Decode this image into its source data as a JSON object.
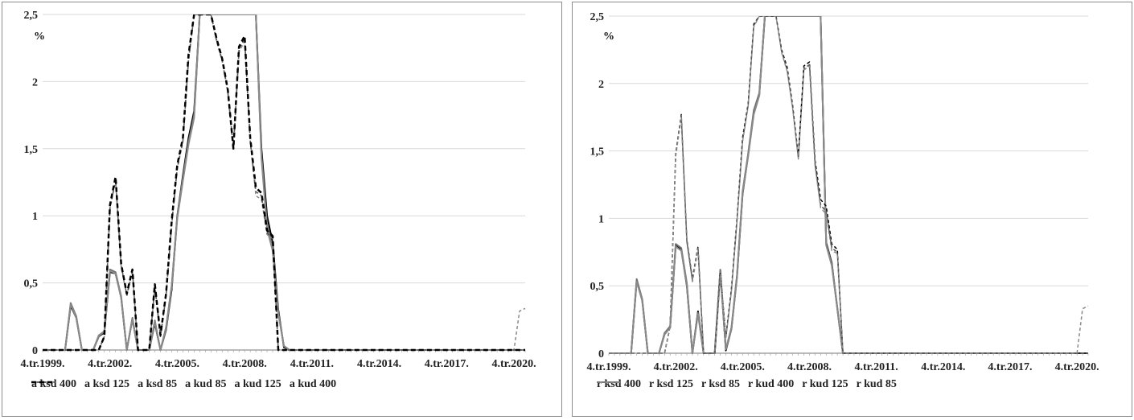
{
  "chart_data": [
    {
      "type": "line",
      "title": "",
      "xlabel": "",
      "ylabel": "%",
      "ylim": [
        0,
        2.5
      ],
      "y_ticks": [
        "0",
        "0,5",
        "1",
        "1,5",
        "2",
        "2,5"
      ],
      "x_tick_labels": [
        "4.tr.1999.",
        "4.tr.2002.",
        "4.tr.2005.",
        "4.tr.2008.",
        "4.tr.2011.",
        "4.tr.2014.",
        "4.tr.2017.",
        "4.tr.2020."
      ],
      "grid": true,
      "legend_position": "bottom",
      "x_start": "4.tr.1999.",
      "x_step": "quarter",
      "series": [
        {
          "name": "a ksd 400",
          "color": "#000000",
          "dash": "solid",
          "width": 2,
          "values": [
            0,
            0,
            0,
            0,
            0,
            0.33,
            0.24,
            0,
            0,
            0,
            0.1,
            0.13,
            0.58,
            0.57,
            0.39,
            0,
            0.23,
            0,
            0,
            0,
            0.2,
            0,
            0.15,
            0.45,
            1,
            1.3,
            1.58,
            1.78,
            2.5,
            2.5,
            2.5,
            2.5,
            2.5,
            2.5,
            2.5,
            2.5,
            2.5,
            2.5,
            2.5,
            1.5,
            1,
            0.8,
            0.3,
            0.02,
            0,
            0,
            0,
            0,
            0,
            0,
            0,
            0,
            0,
            0,
            0,
            0,
            0,
            0,
            0,
            0,
            0,
            0,
            0,
            0,
            0,
            0,
            0,
            0,
            0,
            0,
            0,
            0,
            0,
            0,
            0,
            0,
            0,
            0,
            0,
            0,
            0,
            0,
            0,
            0,
            0,
            0,
            0
          ]
        },
        {
          "name": "a ksd 125",
          "color": "#6e6e6e",
          "dash": "solid",
          "width": 2,
          "values": [
            0,
            0,
            0,
            0,
            0,
            0.35,
            0.25,
            0,
            0,
            0,
            0.1,
            0.14,
            0.6,
            0.58,
            0.4,
            0,
            0.24,
            0,
            0,
            0,
            0.22,
            0,
            0.17,
            0.48,
            1,
            1.28,
            1.55,
            1.75,
            2.5,
            2.5,
            2.5,
            2.5,
            2.5,
            2.5,
            2.5,
            2.5,
            2.5,
            2.5,
            2.5,
            1.45,
            0.93,
            0.76,
            0.28,
            0.03,
            0,
            0,
            0,
            0,
            0,
            0,
            0,
            0,
            0,
            0,
            0,
            0,
            0,
            0,
            0,
            0,
            0,
            0,
            0,
            0,
            0,
            0,
            0,
            0,
            0,
            0,
            0,
            0,
            0,
            0,
            0,
            0,
            0,
            0,
            0,
            0,
            0,
            0,
            0,
            0,
            0,
            0,
            0
          ]
        },
        {
          "name": "a ksd 85",
          "color": "#8a8a8a",
          "dash": "solid",
          "width": 2,
          "values": [
            0,
            0,
            0,
            0,
            0,
            0.34,
            0.24,
            0,
            0,
            0,
            0.11,
            0.14,
            0.59,
            0.57,
            0.39,
            0,
            0.23,
            0,
            0,
            0,
            0.21,
            0,
            0.16,
            0.47,
            0.98,
            1.26,
            1.53,
            1.73,
            2.5,
            2.5,
            2.5,
            2.5,
            2.5,
            2.5,
            2.5,
            2.5,
            2.5,
            2.5,
            2.5,
            1.43,
            0.9,
            0.74,
            0.27,
            0.03,
            0,
            0,
            0,
            0,
            0,
            0,
            0,
            0,
            0,
            0,
            0,
            0,
            0,
            0,
            0,
            0,
            0,
            0,
            0,
            0,
            0,
            0,
            0,
            0,
            0,
            0,
            0,
            0,
            0,
            0,
            0,
            0,
            0,
            0,
            0,
            0,
            0,
            0,
            0,
            0,
            0,
            0,
            0
          ]
        },
        {
          "name": "a kud 85",
          "color": "#8a8a8a",
          "dash": "4,3",
          "width": 1.5,
          "values": [
            0,
            0,
            0,
            0,
            0,
            0,
            0,
            0,
            0,
            0,
            0,
            0.1,
            1.05,
            1.26,
            0.62,
            0.4,
            0.58,
            0,
            0,
            0,
            0.47,
            0.1,
            0.4,
            0.93,
            1.35,
            1.55,
            2.15,
            2.5,
            2.5,
            2.5,
            2.5,
            2.3,
            2.15,
            1.92,
            1.5,
            2.22,
            2.3,
            1.55,
            1.15,
            1.12,
            0.86,
            0.83,
            0,
            0,
            0,
            0,
            0,
            0,
            0,
            0,
            0,
            0,
            0,
            0,
            0,
            0,
            0,
            0,
            0,
            0,
            0,
            0,
            0,
            0,
            0,
            0,
            0,
            0,
            0,
            0,
            0,
            0,
            0,
            0,
            0,
            0,
            0,
            0,
            0,
            0,
            0,
            0,
            0,
            0,
            0,
            0.29,
            0.31
          ]
        },
        {
          "name": "a kud 125",
          "color": "#555555",
          "dash": "4,3",
          "width": 1.5,
          "values": [
            0,
            0,
            0,
            0,
            0,
            0,
            0,
            0,
            0,
            0,
            0,
            0.1,
            1.06,
            1.27,
            0.63,
            0.41,
            0.59,
            0,
            0,
            0,
            0.48,
            0.1,
            0.41,
            0.94,
            1.36,
            1.56,
            2.17,
            2.5,
            2.5,
            2.5,
            2.5,
            2.31,
            2.16,
            1.93,
            1.5,
            2.24,
            2.32,
            1.56,
            1.18,
            1.15,
            0.87,
            0.84,
            0,
            0,
            0,
            0,
            0,
            0,
            0,
            0,
            0,
            0,
            0,
            0,
            0,
            0,
            0,
            0,
            0,
            0,
            0,
            0,
            0,
            0,
            0,
            0,
            0,
            0,
            0,
            0,
            0,
            0,
            0,
            0,
            0,
            0,
            0,
            0,
            0,
            0,
            0,
            0,
            0,
            0,
            0,
            0,
            0
          ]
        },
        {
          "name": "a kud 400",
          "color": "#000000",
          "dash": "6,4",
          "width": 2.5,
          "values": [
            0,
            0,
            0,
            0,
            0,
            0,
            0,
            0,
            0,
            0,
            0,
            0.1,
            1.08,
            1.29,
            0.64,
            0.42,
            0.6,
            0,
            0,
            0,
            0.49,
            0.11,
            0.42,
            0.96,
            1.38,
            1.58,
            2.2,
            2.5,
            2.5,
            2.5,
            2.5,
            2.32,
            2.17,
            1.94,
            1.5,
            2.26,
            2.34,
            1.58,
            1.21,
            1.17,
            0.89,
            0.85,
            0,
            0,
            0,
            0,
            0,
            0,
            0,
            0,
            0,
            0,
            0,
            0,
            0,
            0,
            0,
            0,
            0,
            0,
            0,
            0,
            0,
            0,
            0,
            0,
            0,
            0,
            0,
            0,
            0,
            0,
            0,
            0,
            0,
            0,
            0,
            0,
            0,
            0,
            0,
            0,
            0,
            0,
            0,
            0,
            0
          ]
        }
      ]
    },
    {
      "type": "line",
      "title": "",
      "xlabel": "",
      "ylabel": "%",
      "ylim": [
        0,
        2.5
      ],
      "y_ticks": [
        "0",
        "0,5",
        "1",
        "1,5",
        "2",
        "2,5"
      ],
      "x_tick_labels": [
        "4.tr.1999.",
        "4.tr.2002.",
        "4.tr.2005.",
        "4.tr.2008.",
        "4.tr.2011.",
        "4.tr.2014.",
        "4.tr.2017.",
        "4.tr.2020."
      ],
      "grid": true,
      "legend_position": "bottom",
      "x_start": "4.tr.1999.",
      "x_step": "quarter",
      "series": [
        {
          "name": "r ksd 400",
          "color": "#000000",
          "dash": "solid",
          "width": 2,
          "values": [
            0,
            0,
            0,
            0,
            0,
            0.54,
            0.39,
            0,
            0,
            0,
            0.14,
            0.19,
            0.8,
            0.77,
            0.5,
            0,
            0.31,
            0,
            0,
            0,
            0.61,
            0.02,
            0.18,
            0.57,
            1.18,
            1.47,
            1.78,
            1.92,
            2.5,
            2.5,
            2.5,
            2.5,
            2.5,
            2.5,
            2.5,
            2.5,
            2.5,
            2.5,
            2.5,
            0.82,
            0.67,
            0.33,
            0,
            0,
            0,
            0,
            0,
            0,
            0,
            0,
            0,
            0,
            0,
            0,
            0,
            0,
            0,
            0,
            0,
            0,
            0,
            0,
            0,
            0,
            0,
            0,
            0,
            0,
            0,
            0,
            0,
            0,
            0,
            0,
            0,
            0,
            0,
            0,
            0,
            0,
            0,
            0,
            0,
            0,
            0,
            0,
            0
          ]
        },
        {
          "name": "r ksd 125",
          "color": "#6e6e6e",
          "dash": "solid",
          "width": 2,
          "values": [
            0,
            0,
            0,
            0,
            0,
            0.55,
            0.4,
            0,
            0,
            0,
            0.15,
            0.2,
            0.81,
            0.78,
            0.52,
            0,
            0.3,
            0,
            0,
            0,
            0.62,
            0.03,
            0.19,
            0.58,
            1.2,
            1.48,
            1.8,
            1.93,
            2.5,
            2.5,
            2.5,
            2.5,
            2.5,
            2.5,
            2.5,
            2.5,
            2.5,
            2.5,
            2.5,
            0.81,
            0.66,
            0.34,
            0,
            0,
            0,
            0,
            0,
            0,
            0,
            0,
            0,
            0,
            0,
            0,
            0,
            0,
            0,
            0,
            0,
            0,
            0,
            0,
            0,
            0,
            0,
            0,
            0,
            0,
            0,
            0,
            0,
            0,
            0,
            0,
            0,
            0,
            0,
            0,
            0,
            0,
            0,
            0,
            0,
            0,
            0,
            0,
            0
          ]
        },
        {
          "name": "r ksd 85",
          "color": "#8a8a8a",
          "dash": "solid",
          "width": 2,
          "values": [
            0,
            0,
            0,
            0,
            0,
            0.53,
            0.39,
            0,
            0,
            0,
            0.14,
            0.19,
            0.79,
            0.76,
            0.51,
            0,
            0.29,
            0,
            0,
            0,
            0.6,
            0.03,
            0.18,
            0.56,
            1.19,
            1.46,
            1.77,
            1.91,
            2.5,
            2.5,
            2.5,
            2.5,
            2.5,
            2.5,
            2.5,
            2.5,
            2.5,
            2.5,
            2.5,
            0.8,
            0.65,
            0.33,
            0,
            0,
            0,
            0,
            0,
            0,
            0,
            0,
            0,
            0,
            0,
            0,
            0,
            0,
            0,
            0,
            0,
            0,
            0,
            0,
            0,
            0,
            0,
            0,
            0,
            0,
            0,
            0,
            0,
            0,
            0,
            0,
            0,
            0,
            0,
            0,
            0,
            0,
            0,
            0,
            0,
            0,
            0,
            0,
            0
          ]
        },
        {
          "name": "r kud 400",
          "color": "#000000",
          "dash": "4,3",
          "width": 1.5,
          "values": [
            0,
            0,
            0,
            0,
            0,
            0,
            0,
            0,
            0,
            0,
            0,
            0.2,
            1.48,
            1.77,
            0.84,
            0.55,
            0.79,
            0,
            0,
            0,
            0.6,
            0.12,
            0.48,
            1.0,
            1.6,
            1.85,
            2.44,
            2.5,
            2.5,
            2.5,
            2.5,
            2.25,
            2.12,
            1.83,
            1.46,
            2.13,
            2.16,
            1.43,
            1.14,
            1.09,
            0.81,
            0.77,
            0,
            0,
            0,
            0,
            0,
            0,
            0,
            0,
            0,
            0,
            0,
            0,
            0,
            0,
            0,
            0,
            0,
            0,
            0,
            0,
            0,
            0,
            0,
            0,
            0,
            0,
            0,
            0,
            0,
            0,
            0,
            0,
            0,
            0,
            0,
            0,
            0,
            0,
            0,
            0,
            0,
            0,
            0,
            0,
            0
          ]
        },
        {
          "name": "r kud 125",
          "color": "#555555",
          "dash": "4,3",
          "width": 1.5,
          "values": [
            0,
            0,
            0,
            0,
            0,
            0,
            0,
            0,
            0,
            0,
            0,
            0.2,
            1.47,
            1.76,
            0.83,
            0.54,
            0.78,
            0,
            0,
            0,
            0.59,
            0.12,
            0.47,
            0.99,
            1.58,
            1.84,
            2.43,
            2.5,
            2.5,
            2.5,
            2.5,
            2.24,
            2.1,
            1.82,
            1.45,
            2.11,
            2.14,
            1.4,
            1.1,
            1.05,
            0.78,
            0.75,
            0,
            0,
            0,
            0,
            0,
            0,
            0,
            0,
            0,
            0,
            0,
            0,
            0,
            0,
            0,
            0,
            0,
            0,
            0,
            0,
            0,
            0,
            0,
            0,
            0,
            0,
            0,
            0,
            0,
            0,
            0,
            0,
            0,
            0,
            0,
            0,
            0,
            0,
            0,
            0,
            0,
            0,
            0,
            0,
            0
          ]
        },
        {
          "name": "r kud 85",
          "color": "#8a8a8a",
          "dash": "4,3",
          "width": 1.5,
          "values": [
            0,
            0,
            0,
            0,
            0,
            0,
            0,
            0,
            0,
            0,
            0,
            0.2,
            1.46,
            1.75,
            0.82,
            0.53,
            0.77,
            0,
            0,
            0,
            0.58,
            0.11,
            0.46,
            0.98,
            1.57,
            1.83,
            2.42,
            2.5,
            2.5,
            2.5,
            2.5,
            2.23,
            2.09,
            1.81,
            1.44,
            2.1,
            2.13,
            1.39,
            1.08,
            1.03,
            0.76,
            0.74,
            0,
            0,
            0,
            0,
            0,
            0,
            0,
            0,
            0,
            0,
            0,
            0,
            0,
            0,
            0,
            0,
            0,
            0,
            0,
            0,
            0,
            0,
            0,
            0,
            0,
            0,
            0,
            0,
            0,
            0,
            0,
            0,
            0,
            0,
            0,
            0,
            0,
            0,
            0,
            0,
            0,
            0,
            0,
            0.33,
            0.35
          ]
        }
      ]
    }
  ]
}
